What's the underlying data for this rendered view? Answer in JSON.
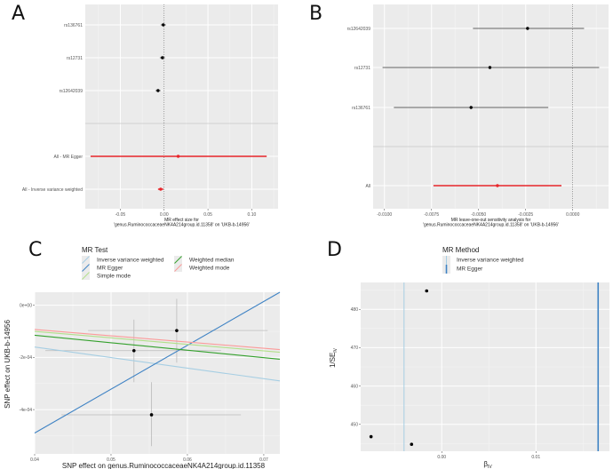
{
  "chart_data": [
    {
      "panel": "A",
      "type": "forest",
      "xlabel_lines": [
        "MR effect size for",
        "'genus.RuminococcaceaeNK4A214group.id.11358' on 'UKB-b-14956'"
      ],
      "xticks": [
        -0.05,
        0.0,
        0.05,
        0.1
      ],
      "xtick_labels": [
        "-0.05",
        "0.00",
        "0.05",
        "0.10"
      ],
      "xlim": [
        -0.09,
        0.13
      ],
      "reference_line": 0,
      "rows": [
        {
          "label": "rs136761",
          "estimate": -0.001,
          "lo": -0.004,
          "hi": 0.002,
          "color": "#000000"
        },
        {
          "label": "rs12731",
          "estimate": -0.002,
          "lo": -0.005,
          "hi": 0.001,
          "color": "#000000"
        },
        {
          "label": "rs12642039",
          "estimate": -0.007,
          "lo": -0.01,
          "hi": -0.004,
          "color": "#000000"
        },
        {
          "label": "All - MR Egger",
          "estimate": 0.016,
          "lo": -0.084,
          "hi": 0.117,
          "color": "#e8262b"
        },
        {
          "label": "All - Inverse variance weighted",
          "estimate": -0.004,
          "lo": -0.007,
          "hi": -0.001,
          "color": "#e8262b"
        }
      ]
    },
    {
      "panel": "B",
      "type": "forest",
      "xlabel_lines": [
        "MR leave-one-out sensitivity analysis for",
        "'genus.RuminococcaceaeNK4A214group.id.11358' on 'UKB-b-14956'"
      ],
      "xticks": [
        -0.01,
        -0.0075,
        -0.005,
        -0.0025,
        0.0
      ],
      "xtick_labels": [
        "-0.0100",
        "-0.0075",
        "-0.0050",
        "-0.0025",
        "0.0000"
      ],
      "xlim": [
        -0.0106,
        0.0019
      ],
      "reference_line": 0,
      "rows": [
        {
          "label": "rs12642039",
          "estimate": -0.0024,
          "lo": -0.0053,
          "hi": 0.0006,
          "color": "#000000"
        },
        {
          "label": "rs12731",
          "estimate": -0.0044,
          "lo": -0.0101,
          "hi": 0.0014,
          "color": "#000000"
        },
        {
          "label": "rs136761",
          "estimate": -0.0054,
          "lo": -0.0095,
          "hi": -0.0013,
          "color": "#000000"
        },
        {
          "label": "All",
          "estimate": -0.004,
          "lo": -0.0074,
          "hi": -0.0006,
          "color": "#e8262b"
        }
      ]
    },
    {
      "panel": "C",
      "type": "scatter",
      "xlabel": "SNP effect on genus.RuminococcaceaeNK4A214group.id.11358",
      "ylabel": "SNP effect on UKB-b-14956",
      "xlim": [
        0.04,
        0.0721
      ],
      "ylim": [
        -0.00057,
        5e-05
      ],
      "xticks": [
        0.04,
        0.05,
        0.06,
        0.07
      ],
      "xtick_labels": [
        "0.04",
        "0.05",
        "0.06",
        "0.07"
      ],
      "yticks": [
        0.0,
        -0.0002,
        -0.0004
      ],
      "ytick_labels": [
        "0e+00",
        "-2e-04",
        "-4e-04"
      ],
      "legend_title": "MR Test",
      "legend_position": "top",
      "points": [
        {
          "x": 0.053,
          "y": -0.000174,
          "xlo": 0.0414,
          "xhi": 0.0644,
          "ylo": -0.000295,
          "yhi": -5.5e-05
        },
        {
          "x": 0.0586,
          "y": -9.7e-05,
          "xlo": 0.047,
          "xhi": 0.0705,
          "ylo": -0.00022,
          "yhi": 2.5e-05
        },
        {
          "x": 0.0553,
          "y": -0.00042,
          "xlo": 0.0435,
          "xhi": 0.067,
          "ylo": -0.00054,
          "yhi": -0.000295
        }
      ],
      "lines": [
        {
          "name": "Inverse variance weighted",
          "color": "#a6cee3",
          "y_at_xmin": -0.00016,
          "y_at_xmax": -0.00029
        },
        {
          "name": "MR Egger",
          "color": "#3f83c4",
          "y_at_xmin": -0.00049,
          "y_at_xmax": 5e-05
        },
        {
          "name": "Simple mode",
          "color": "#b2df8a",
          "y_at_xmin": -0.0001,
          "y_at_xmax": -0.00018
        },
        {
          "name": "Weighted median",
          "color": "#33a02c",
          "y_at_xmin": -0.000115,
          "y_at_xmax": -0.000207
        },
        {
          "name": "Weighted mode",
          "color": "#fb9a99",
          "y_at_xmin": -9.3e-05,
          "y_at_xmax": -0.00017
        }
      ]
    },
    {
      "panel": "D",
      "type": "scatter",
      "xlabel": "β",
      "xlabel_sub": "IV",
      "ylabel": "1/SE",
      "ylabel_sub": "IV",
      "xlim": [
        -0.0086,
        0.0178
      ],
      "ylim": [
        443,
        487
      ],
      "xticks": [
        0.0,
        0.01
      ],
      "xtick_labels": [
        "0.00",
        "0.01"
      ],
      "yticks": [
        450,
        460,
        470,
        480
      ],
      "ytick_labels": [
        "450",
        "460",
        "470",
        "480"
      ],
      "legend_title": "MR Method",
      "legend_position": "top",
      "points": [
        {
          "x": -0.0075,
          "y": 446.8
        },
        {
          "x": -0.0032,
          "y": 444.8
        },
        {
          "x": -0.0016,
          "y": 484.8
        }
      ],
      "vlines": [
        {
          "name": "Inverse variance weighted",
          "x": -0.004,
          "color": "#a6cee3",
          "width": 1
        },
        {
          "name": "MR Egger",
          "x": 0.0166,
          "color": "#3f83c4",
          "width": 1.6
        }
      ]
    }
  ],
  "panel_labels": [
    "A",
    "B",
    "C",
    "D"
  ]
}
